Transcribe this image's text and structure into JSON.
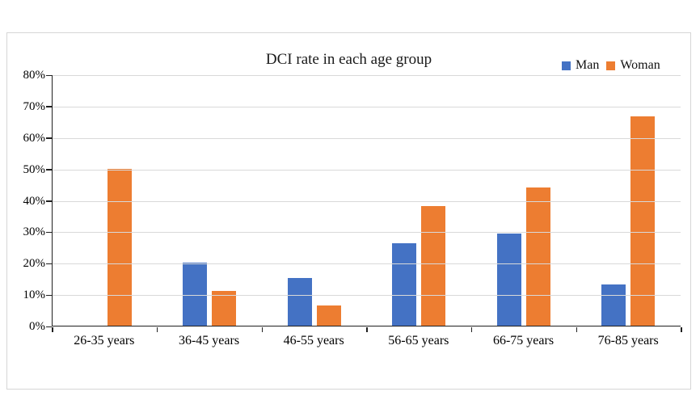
{
  "chart_data": {
    "type": "bar",
    "title": "DCI rate in each age group",
    "categories": [
      "26-35 years",
      "36-45 years",
      "46-55 years",
      "56-65 years",
      "66-75 years",
      "76-85 years"
    ],
    "series": [
      {
        "name": "Man",
        "color": "#4472C4",
        "values": [
          0,
          20,
          15.2,
          26.3,
          29.4,
          13
        ]
      },
      {
        "name": "Woman",
        "color": "#ED7D31",
        "values": [
          50,
          11.1,
          6.5,
          38.2,
          44.1,
          66.7
        ]
      }
    ],
    "xlabel": "",
    "ylabel": "",
    "ylim": [
      0,
      80
    ],
    "ytick_step": 10,
    "ytick_labels": [
      "0%",
      "10%",
      "20%",
      "30%",
      "40%",
      "50%",
      "60%",
      "70%",
      "80%"
    ],
    "grid": true,
    "legend_position": "top-right",
    "colors": {
      "gridline": "#d9d9d9",
      "axis": "#202020",
      "text": "#000000"
    }
  }
}
